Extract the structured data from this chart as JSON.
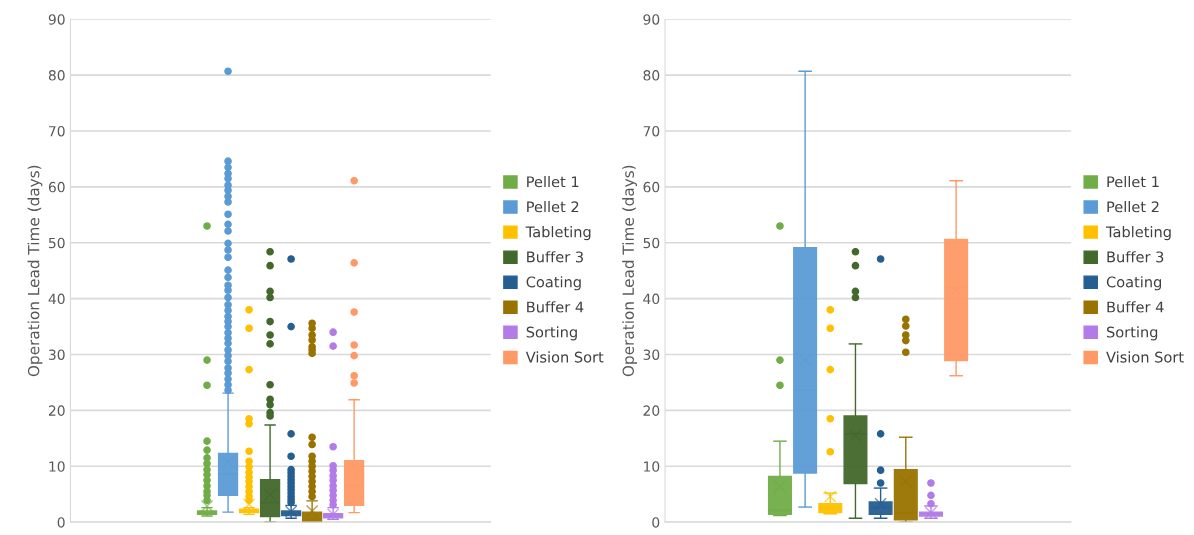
{
  "chart_data": [
    {
      "type": "box",
      "categories": [
        null
      ],
      "ylabel": "Operation Lead Time (days)",
      "ylim": [
        0,
        90
      ],
      "yticks": [
        0,
        10,
        20,
        30,
        40,
        50,
        60,
        70,
        80,
        90
      ],
      "grid": "y",
      "legend": "right",
      "marker": "circle",
      "series": [
        {
          "name": "Pellet 1",
          "color": "#70ad47",
          "boxes": [
            {
              "low": 1.1,
              "q1": 1.4,
              "median": 1.7,
              "q3": 2.0,
              "high": 2.6,
              "mean": 2.9,
              "outliers": [
                53.0,
                29.0,
                24.5,
                14.5,
                12.9,
                11.5,
                10.5,
                9.4,
                8.5,
                7.5,
                6.5,
                5.5,
                4.8,
                3.9
              ]
            }
          ]
        },
        {
          "name": "Pellet 2",
          "color": "#5b9bd5",
          "boxes": [
            {
              "low": 1.8,
              "q1": 4.8,
              "median": 8.6,
              "q3": 12.3,
              "high": 23.1,
              "mean": 10.8,
              "outliers": [
                23.6,
                24.6,
                25.6,
                26.7,
                27.6,
                28.8,
                29.8,
                30.8,
                32.0,
                32.9,
                33.9,
                35.0,
                35.9,
                36.8,
                37.9,
                38.9,
                40.2,
                41.5,
                42.4,
                43.8,
                45.1,
                47.4,
                48.7,
                49.9,
                52.1,
                53.3,
                55.1,
                57.3,
                58.3,
                59.4,
                60.3,
                61.5,
                62.4,
                63.5,
                64.6,
                80.7
              ]
            }
          ]
        },
        {
          "name": "Tableting",
          "color": "#ffc000",
          "boxes": [
            {
              "low": 1.4,
              "q1": 1.7,
              "median": 2.0,
              "q3": 2.3,
              "high": 2.6,
              "mean": 3.2,
              "outliers": [
                38.0,
                34.7,
                27.3,
                18.5,
                17.6,
                12.7,
                10.9,
                9.9,
                8.9,
                8.1,
                7.3,
                6.4,
                5.5,
                4.6,
                3.9
              ]
            }
          ]
        },
        {
          "name": "Buffer 3",
          "color": "#43682b",
          "boxes": [
            {
              "low": 0,
              "q1": 1.0,
              "median": 3.5,
              "q3": 7.6,
              "high": 17.4,
              "mean": 4.9,
              "outliers": [
                19.0,
                19.6,
                21.0,
                22.0,
                24.6,
                31.9,
                33.5,
                35.9,
                40.2,
                41.3,
                45.9,
                48.4
              ]
            }
          ]
        },
        {
          "name": "Coating",
          "color": "#255e91",
          "boxes": [
            {
              "low": 0.7,
              "q1": 1.2,
              "median": 1.6,
              "q3": 2.0,
              "high": 3.0,
              "mean": 1.9,
              "outliers": [
                47.1,
                35.0,
                15.8,
                11.8,
                9.4,
                8.8,
                8.2,
                7.6,
                7.0,
                6.4,
                5.8,
                5.2,
                4.6,
                4.0,
                3.5
              ]
            }
          ]
        },
        {
          "name": "Buffer 4",
          "color": "#997300",
          "boxes": [
            {
              "low": 0,
              "q1": 0,
              "median": 0.6,
              "q3": 1.8,
              "high": 3.8,
              "mean": 2.0,
              "outliers": [
                35.6,
                34.7,
                33.5,
                32.6,
                31.4,
                30.8,
                30.2,
                15.2,
                13.9,
                11.8,
                10.9,
                10.0,
                9.1,
                8.2,
                7.3,
                6.4,
                5.5,
                4.6
              ]
            }
          ]
        },
        {
          "name": "Sorting",
          "color": "#b27be8",
          "boxes": [
            {
              "low": 0.5,
              "q1": 0.8,
              "median": 1.2,
              "q3": 1.5,
              "high": 2.6,
              "mean": 1.4,
              "outliers": [
                34.0,
                31.5,
                13.5,
                10.1,
                9.3,
                8.3,
                7.5,
                6.5,
                5.7,
                4.8,
                3.9,
                3.1
              ]
            }
          ]
        },
        {
          "name": "Vision Sort",
          "color": "#ff9966",
          "boxes": [
            {
              "low": 1.7,
              "q1": 3.0,
              "median": 6.5,
              "q3": 11.0,
              "high": 21.9,
              "mean": 10.0,
              "outliers": [
                61.1,
                46.4,
                37.6,
                31.7,
                29.8,
                26.2,
                24.9
              ]
            }
          ]
        }
      ]
    },
    {
      "type": "box",
      "categories": [
        null
      ],
      "ylabel": "Operation Lead Time (days)",
      "ylim": [
        0,
        90
      ],
      "yticks": [
        0,
        10,
        20,
        30,
        40,
        50,
        60,
        70,
        80,
        90
      ],
      "grid": "y",
      "legend": "right",
      "marker": "circle",
      "series": [
        {
          "name": "Pellet 1",
          "color": "#70ad47",
          "boxes": [
            {
              "low": 1.2,
              "q1": 1.4,
              "median": 2.1,
              "q3": 8.2,
              "high": 14.5,
              "mean": 6.4,
              "outliers": [
                53.0,
                29.0,
                24.5
              ]
            }
          ]
        },
        {
          "name": "Pellet 2",
          "color": "#5b9bd5",
          "boxes": [
            {
              "low": 2.7,
              "q1": 8.8,
              "median": 23.6,
              "q3": 49.1,
              "high": 80.7,
              "mean": 29.0
            }
          ]
        },
        {
          "name": "Tableting",
          "color": "#ffc000",
          "boxes": [
            {
              "low": 1.5,
              "q1": 1.7,
              "median": 2.6,
              "q3": 3.3,
              "high": 5.2,
              "mean": 4.6,
              "outliers": [
                38.0,
                34.7,
                27.3,
                18.5,
                12.6
              ]
            }
          ]
        },
        {
          "name": "Buffer 3",
          "color": "#43682b",
          "boxes": [
            {
              "low": 0.7,
              "q1": 6.9,
              "median": 15.8,
              "q3": 19.0,
              "high": 31.9,
              "mean": 15.5,
              "outliers": [
                48.4,
                45.9,
                41.3,
                40.2
              ]
            }
          ]
        },
        {
          "name": "Coating",
          "color": "#255e91",
          "boxes": [
            {
              "low": 0.7,
              "q1": 1.4,
              "median": 2.6,
              "q3": 3.6,
              "high": 6.1,
              "mean": 3.3,
              "outliers": [
                47.1,
                15.8,
                9.3,
                7.0
              ]
            }
          ]
        },
        {
          "name": "Buffer 4",
          "color": "#997300",
          "boxes": [
            {
              "low": 0,
              "q1": 0.4,
              "median": 1.7,
              "q3": 9.4,
              "high": 15.2,
              "mean": 7.3,
              "outliers": [
                36.3,
                35.1,
                33.5,
                32.5,
                30.4
              ]
            }
          ]
        },
        {
          "name": "Sorting",
          "color": "#b27be8",
          "boxes": [
            {
              "low": 0.7,
              "q1": 1.1,
              "median": 1.5,
              "q3": 1.8,
              "high": 2.9,
              "mean": 1.7,
              "outliers": [
                7.0,
                4.8,
                3.3
              ]
            }
          ]
        },
        {
          "name": "Vision Sort",
          "color": "#ff9966",
          "boxes": [
            {
              "low": 26.2,
              "q1": 28.9,
              "median": 42.0,
              "q3": 50.6,
              "high": 61.1,
              "mean": 41.4
            }
          ]
        }
      ]
    }
  ]
}
